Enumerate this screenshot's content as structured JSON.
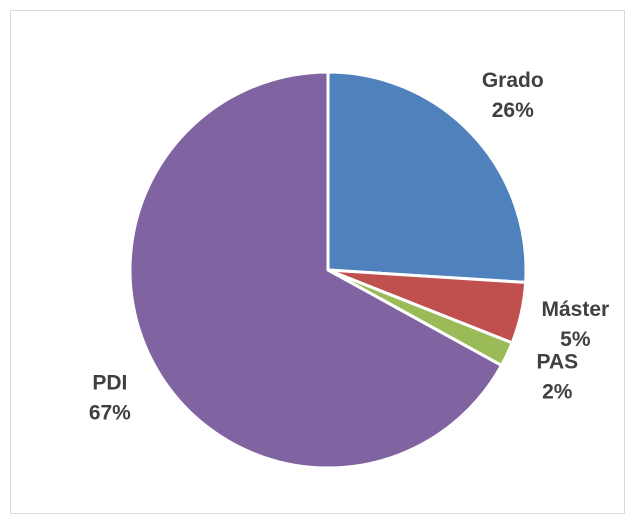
{
  "chart_data": {
    "type": "pie",
    "categories": [
      "Grado",
      "Máster",
      "PAS",
      "PDI"
    ],
    "values": [
      26,
      5,
      2,
      67
    ],
    "value_labels": [
      "26%",
      "5%",
      "2%",
      "67%"
    ],
    "colors": [
      "#4f81bd",
      "#c0504d",
      "#9bbb59",
      "#8064a2"
    ]
  }
}
